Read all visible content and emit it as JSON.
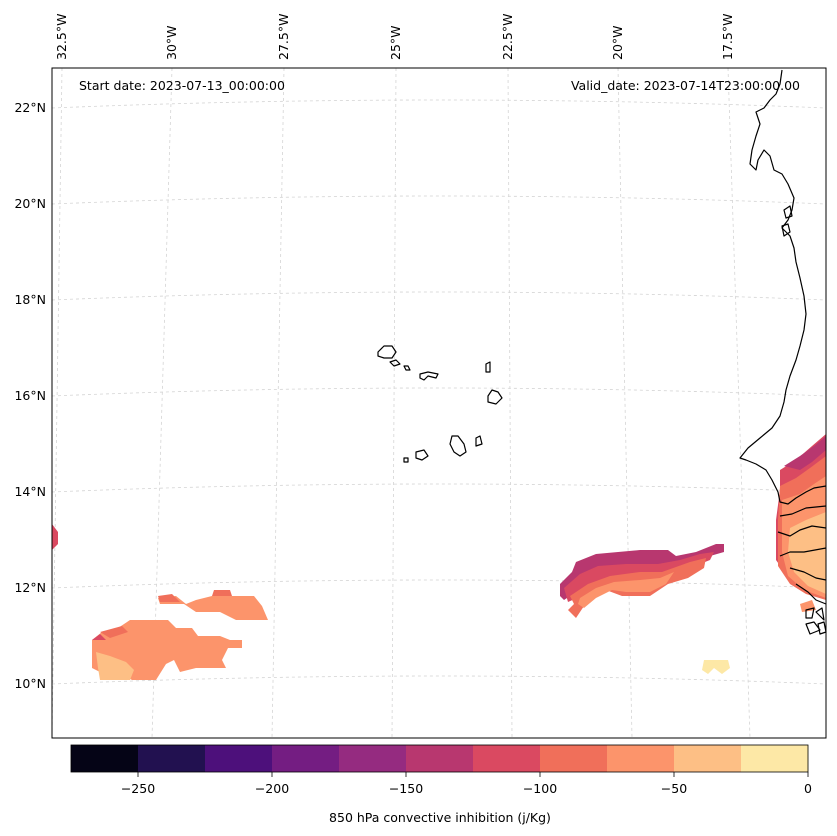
{
  "annotations": {
    "start_date": "Start date: 2023-07-13_00:00:00",
    "valid_date": "Valid_date: 2023-07-14T23:00:00.00"
  },
  "axes": {
    "lon_labels": [
      "32.5°W",
      "30°W",
      "27.5°W",
      "25°W",
      "22.5°W",
      "20°W",
      "17.5°W"
    ],
    "lat_labels": [
      "22°N",
      "20°N",
      "18°N",
      "16°N",
      "14°N",
      "12°N",
      "10°N"
    ]
  },
  "colorbar": {
    "label": "850 hPa convective inhibition (j/Kg)",
    "tick_labels": [
      "−250",
      "−200",
      "−150",
      "−100",
      "−50",
      "0"
    ],
    "colors": [
      "#050416",
      "#221150",
      "#4d107b",
      "#741d82",
      "#952b80",
      "#b8376f",
      "#da4961",
      "#f06f5a",
      "#fc946b",
      "#fdbf85",
      "#fde8a6"
    ]
  },
  "colors": {
    "coast": "#000000",
    "grid": "#d4d4d4"
  }
}
